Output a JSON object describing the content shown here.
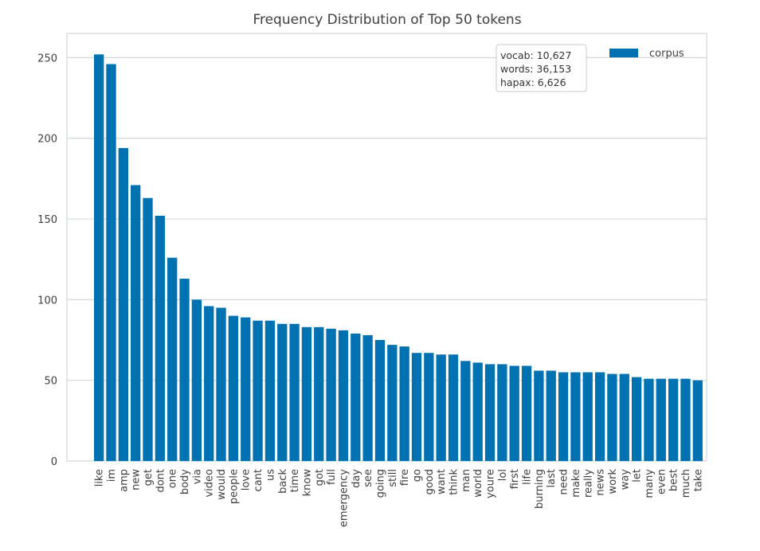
{
  "chart_data": {
    "type": "bar",
    "title": "Frequency Distribution of Top 50 tokens",
    "xlabel": "",
    "ylabel": "",
    "ylim": [
      0,
      265
    ],
    "yticks": [
      0,
      50,
      100,
      150,
      200,
      250
    ],
    "grid": true,
    "legend_position": "top-right",
    "bar_color": "#0072b2",
    "categories": [
      "like",
      "im",
      "amp",
      "new",
      "get",
      "dont",
      "one",
      "body",
      "via",
      "video",
      "would",
      "people",
      "love",
      "cant",
      "us",
      "back",
      "time",
      "know",
      "got",
      "full",
      "emergency",
      "day",
      "see",
      "going",
      "still",
      "fire",
      "go",
      "good",
      "want",
      "think",
      "man",
      "world",
      "youre",
      "lol",
      "first",
      "life",
      "burning",
      "last",
      "need",
      "make",
      "really",
      "news",
      "work",
      "way",
      "let",
      "many",
      "even",
      "best",
      "much",
      "take"
    ],
    "series": [
      {
        "name": "corpus",
        "values": [
          252,
          246,
          194,
          171,
          163,
          152,
          126,
          113,
          100,
          96,
          95,
          90,
          89,
          87,
          87,
          85,
          85,
          83,
          83,
          82,
          81,
          79,
          78,
          75,
          72,
          71,
          67,
          67,
          66,
          66,
          62,
          61,
          60,
          60,
          59,
          59,
          56,
          56,
          55,
          55,
          55,
          55,
          54,
          54,
          52,
          51,
          51,
          51,
          51,
          50
        ]
      }
    ],
    "annotation": {
      "lines": [
        "vocab: 10,627",
        "words: 36,153",
        "hapax: 6,626"
      ]
    }
  }
}
